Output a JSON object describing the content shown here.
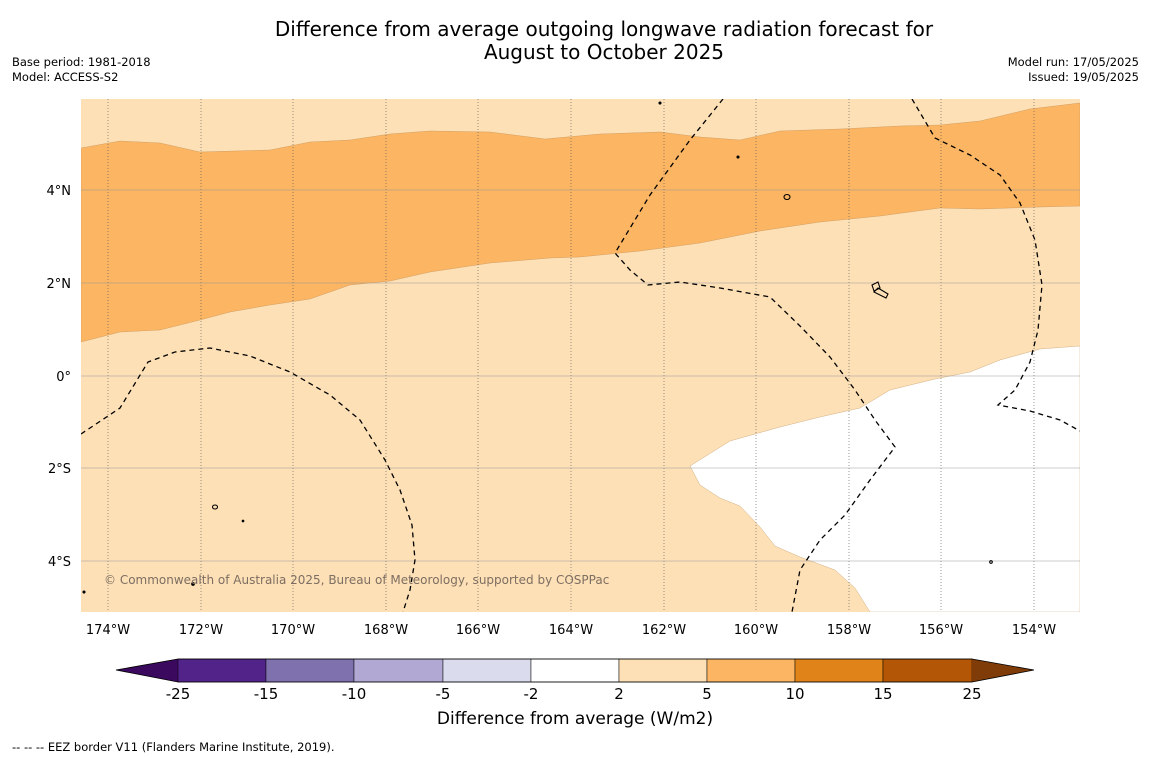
{
  "title": {
    "line1": "Difference from average outgoing longwave radiation forecast for",
    "line2": "August to October 2025"
  },
  "meta": {
    "base_period": "Base period: 1981-2018",
    "model": "Model: ACCESS-S2",
    "model_run": "Model run: 17/05/2025",
    "issued": "Issued: 19/05/2025"
  },
  "map": {
    "lon_ticks": [
      "174°W",
      "172°W",
      "170°W",
      "168°W",
      "166°W",
      "164°W",
      "162°W",
      "160°W",
      "158°W",
      "156°W",
      "154°W"
    ],
    "lat_ticks": [
      "4°N",
      "2°N",
      "0°",
      "2°S",
      "4°S"
    ],
    "copyright": "© Commonwealth of Australia 2025, Bureau of Meteorology, supported by COSPPac",
    "colors": {
      "band_2_5": "#fde0b6",
      "band_5_10": "#fbb563",
      "band_neutral": "#ffffff"
    }
  },
  "colorbar": {
    "label": "Difference from average (W/m2)",
    "ticks": [
      "-25",
      "-15",
      "-10",
      "-5",
      "-2",
      "2",
      "5",
      "10",
      "15",
      "25"
    ],
    "colors": [
      "#3b0a5e",
      "#522388",
      "#7f71ae",
      "#b1a9d4",
      "#dbdbee",
      "#ffffff",
      "#fde0b6",
      "#fbb563",
      "#e0841a",
      "#b35706",
      "#7f3b08"
    ]
  },
  "footer": "-- -- -- EEZ border V11 (Flanders Marine Institute, 2019)."
}
